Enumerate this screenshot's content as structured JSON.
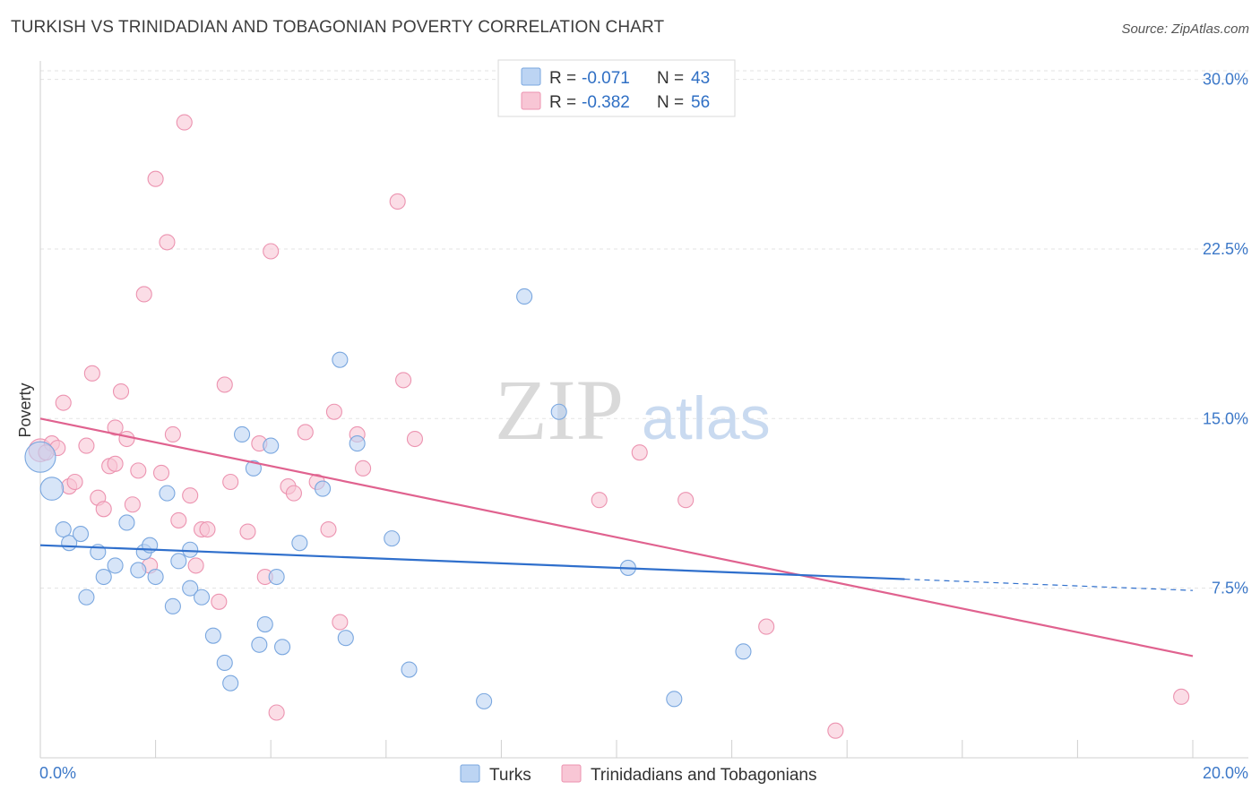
{
  "header": {
    "title": "TURKISH VS TRINIDADIAN AND TOBAGONIAN POVERTY CORRELATION CHART",
    "source": "Source: ZipAtlas.com"
  },
  "watermark": {
    "zip": "ZIP",
    "atlas": "atlas"
  },
  "legend": {
    "r_label": "R =",
    "n_label": "N =",
    "turks": {
      "r": "-0.071",
      "n": "43"
    },
    "trini": {
      "r": "-0.382",
      "n": "56"
    }
  },
  "bottom_legend": {
    "turks": "Turks",
    "trini": "Trinidadians and Tobagonians"
  },
  "colors": {
    "turks_fill": "#bcd4f3",
    "turks_stroke": "#7aa7df",
    "turks_line": "#2f6fcc",
    "trini_fill": "#f8c6d5",
    "trini_stroke": "#ec93b0",
    "trini_line": "#e0628f",
    "tick_text": "#3c78c8",
    "grid": "#e3e3e3"
  },
  "chart_data": {
    "type": "scatter",
    "title": "TURKISH VS TRINIDADIAN AND TOBAGONIAN POVERTY CORRELATION CHART",
    "xlabel": "",
    "ylabel": "Poverty",
    "xlim": [
      0,
      20
    ],
    "ylim": [
      0,
      30.5
    ],
    "x_ticks": [
      {
        "v": 0,
        "label": "0.0%"
      },
      {
        "v": 20,
        "label": "20.0%"
      }
    ],
    "y_ticks": [
      {
        "v": 7.5,
        "label": "7.5%"
      },
      {
        "v": 15,
        "label": "15.0%"
      },
      {
        "v": 22.5,
        "label": "22.5%"
      },
      {
        "v": 30,
        "label": "30.0%"
      }
    ],
    "grid": true,
    "legend_position": "top-center",
    "series": [
      {
        "name": "Turks",
        "r": -0.071,
        "n": 43,
        "trend": {
          "x0": 0,
          "y0": 9.4,
          "x1": 15,
          "y1": 7.9,
          "dashed_to_x": 20,
          "dashed_to_y": 7.4
        },
        "points": [
          {
            "x": 0.0,
            "y": 13.3,
            "s": 2
          },
          {
            "x": 0.2,
            "y": 11.9,
            "s": 1.5
          },
          {
            "x": 0.4,
            "y": 10.1,
            "s": 1
          },
          {
            "x": 0.5,
            "y": 9.5,
            "s": 1
          },
          {
            "x": 0.7,
            "y": 9.9,
            "s": 1
          },
          {
            "x": 0.8,
            "y": 7.1,
            "s": 1
          },
          {
            "x": 1.0,
            "y": 9.1,
            "s": 1
          },
          {
            "x": 1.1,
            "y": 8.0,
            "s": 1
          },
          {
            "x": 1.3,
            "y": 8.5,
            "s": 1
          },
          {
            "x": 1.5,
            "y": 10.4,
            "s": 1
          },
          {
            "x": 1.7,
            "y": 8.3,
            "s": 1
          },
          {
            "x": 1.8,
            "y": 9.1,
            "s": 1
          },
          {
            "x": 1.9,
            "y": 9.4,
            "s": 1
          },
          {
            "x": 2.0,
            "y": 8.0,
            "s": 1
          },
          {
            "x": 2.2,
            "y": 11.7,
            "s": 1
          },
          {
            "x": 2.3,
            "y": 6.7,
            "s": 1
          },
          {
            "x": 2.4,
            "y": 8.7,
            "s": 1
          },
          {
            "x": 2.6,
            "y": 9.2,
            "s": 1
          },
          {
            "x": 2.6,
            "y": 7.5,
            "s": 1
          },
          {
            "x": 2.8,
            "y": 7.1,
            "s": 1
          },
          {
            "x": 3.0,
            "y": 5.4,
            "s": 1
          },
          {
            "x": 3.2,
            "y": 4.2,
            "s": 1
          },
          {
            "x": 3.3,
            "y": 3.3,
            "s": 1
          },
          {
            "x": 3.5,
            "y": 14.3,
            "s": 1
          },
          {
            "x": 3.7,
            "y": 12.8,
            "s": 1
          },
          {
            "x": 3.8,
            "y": 5.0,
            "s": 1
          },
          {
            "x": 3.9,
            "y": 5.9,
            "s": 1
          },
          {
            "x": 4.0,
            "y": 13.8,
            "s": 1
          },
          {
            "x": 4.1,
            "y": 8.0,
            "s": 1
          },
          {
            "x": 4.2,
            "y": 4.9,
            "s": 1
          },
          {
            "x": 4.5,
            "y": 9.5,
            "s": 1
          },
          {
            "x": 4.9,
            "y": 11.9,
            "s": 1
          },
          {
            "x": 5.2,
            "y": 17.6,
            "s": 1
          },
          {
            "x": 5.3,
            "y": 5.3,
            "s": 1
          },
          {
            "x": 5.5,
            "y": 13.9,
            "s": 1
          },
          {
            "x": 6.1,
            "y": 9.7,
            "s": 1
          },
          {
            "x": 6.4,
            "y": 3.9,
            "s": 1
          },
          {
            "x": 7.7,
            "y": 2.5,
            "s": 1
          },
          {
            "x": 9.0,
            "y": 15.3,
            "s": 1
          },
          {
            "x": 8.4,
            "y": 20.4,
            "s": 1
          },
          {
            "x": 10.2,
            "y": 8.4,
            "s": 1
          },
          {
            "x": 11.0,
            "y": 2.6,
            "s": 1
          },
          {
            "x": 12.2,
            "y": 4.7,
            "s": 1
          }
        ]
      },
      {
        "name": "Trinidadians and Tobagonians",
        "r": -0.382,
        "n": 56,
        "trend": {
          "x0": 0,
          "y0": 15.0,
          "x1": 20,
          "y1": 4.5
        },
        "points": [
          {
            "x": 0.0,
            "y": 13.6,
            "s": 1.5
          },
          {
            "x": 0.2,
            "y": 13.9,
            "s": 1
          },
          {
            "x": 0.3,
            "y": 13.7,
            "s": 1
          },
          {
            "x": 0.4,
            "y": 15.7,
            "s": 1
          },
          {
            "x": 0.5,
            "y": 12.0,
            "s": 1
          },
          {
            "x": 0.6,
            "y": 12.2,
            "s": 1
          },
          {
            "x": 0.8,
            "y": 13.8,
            "s": 1
          },
          {
            "x": 0.9,
            "y": 17.0,
            "s": 1
          },
          {
            "x": 1.0,
            "y": 11.5,
            "s": 1
          },
          {
            "x": 1.1,
            "y": 11.0,
            "s": 1
          },
          {
            "x": 1.2,
            "y": 12.9,
            "s": 1
          },
          {
            "x": 1.3,
            "y": 13.0,
            "s": 1
          },
          {
            "x": 1.3,
            "y": 14.6,
            "s": 1
          },
          {
            "x": 1.4,
            "y": 16.2,
            "s": 1
          },
          {
            "x": 1.5,
            "y": 14.1,
            "s": 1
          },
          {
            "x": 1.6,
            "y": 11.2,
            "s": 1
          },
          {
            "x": 1.7,
            "y": 12.7,
            "s": 1
          },
          {
            "x": 1.8,
            "y": 20.5,
            "s": 1
          },
          {
            "x": 1.9,
            "y": 8.5,
            "s": 1
          },
          {
            "x": 2.0,
            "y": 25.6,
            "s": 1
          },
          {
            "x": 2.1,
            "y": 12.6,
            "s": 1
          },
          {
            "x": 2.2,
            "y": 22.8,
            "s": 1
          },
          {
            "x": 2.3,
            "y": 14.3,
            "s": 1
          },
          {
            "x": 2.4,
            "y": 10.5,
            "s": 1
          },
          {
            "x": 2.5,
            "y": 28.1,
            "s": 1
          },
          {
            "x": 2.6,
            "y": 11.6,
            "s": 1
          },
          {
            "x": 2.7,
            "y": 8.5,
            "s": 1
          },
          {
            "x": 2.8,
            "y": 10.1,
            "s": 1
          },
          {
            "x": 2.9,
            "y": 10.1,
            "s": 1
          },
          {
            "x": 3.1,
            "y": 6.9,
            "s": 1
          },
          {
            "x": 3.2,
            "y": 16.5,
            "s": 1
          },
          {
            "x": 3.3,
            "y": 12.2,
            "s": 1
          },
          {
            "x": 3.6,
            "y": 10.0,
            "s": 1
          },
          {
            "x": 3.8,
            "y": 13.9,
            "s": 1
          },
          {
            "x": 3.9,
            "y": 8.0,
            "s": 1
          },
          {
            "x": 4.0,
            "y": 22.4,
            "s": 1
          },
          {
            "x": 4.1,
            "y": 2.0,
            "s": 1
          },
          {
            "x": 4.3,
            "y": 12.0,
            "s": 1
          },
          {
            "x": 4.4,
            "y": 11.7,
            "s": 1
          },
          {
            "x": 4.6,
            "y": 14.4,
            "s": 1
          },
          {
            "x": 4.8,
            "y": 12.2,
            "s": 1
          },
          {
            "x": 5.0,
            "y": 10.1,
            "s": 1
          },
          {
            "x": 5.1,
            "y": 15.3,
            "s": 1
          },
          {
            "x": 5.2,
            "y": 6.0,
            "s": 1
          },
          {
            "x": 5.5,
            "y": 14.3,
            "s": 1
          },
          {
            "x": 5.6,
            "y": 12.8,
            "s": 1
          },
          {
            "x": 6.2,
            "y": 24.6,
            "s": 1
          },
          {
            "x": 6.3,
            "y": 16.7,
            "s": 1
          },
          {
            "x": 6.5,
            "y": 14.1,
            "s": 1
          },
          {
            "x": 9.7,
            "y": 11.4,
            "s": 1
          },
          {
            "x": 10.4,
            "y": 13.5,
            "s": 1
          },
          {
            "x": 11.2,
            "y": 11.4,
            "s": 1
          },
          {
            "x": 12.6,
            "y": 5.8,
            "s": 1
          },
          {
            "x": 13.8,
            "y": 1.2,
            "s": 1
          },
          {
            "x": 19.8,
            "y": 2.7,
            "s": 1
          },
          {
            "x": 0.1,
            "y": 13.5,
            "s": 1
          }
        ]
      }
    ]
  }
}
